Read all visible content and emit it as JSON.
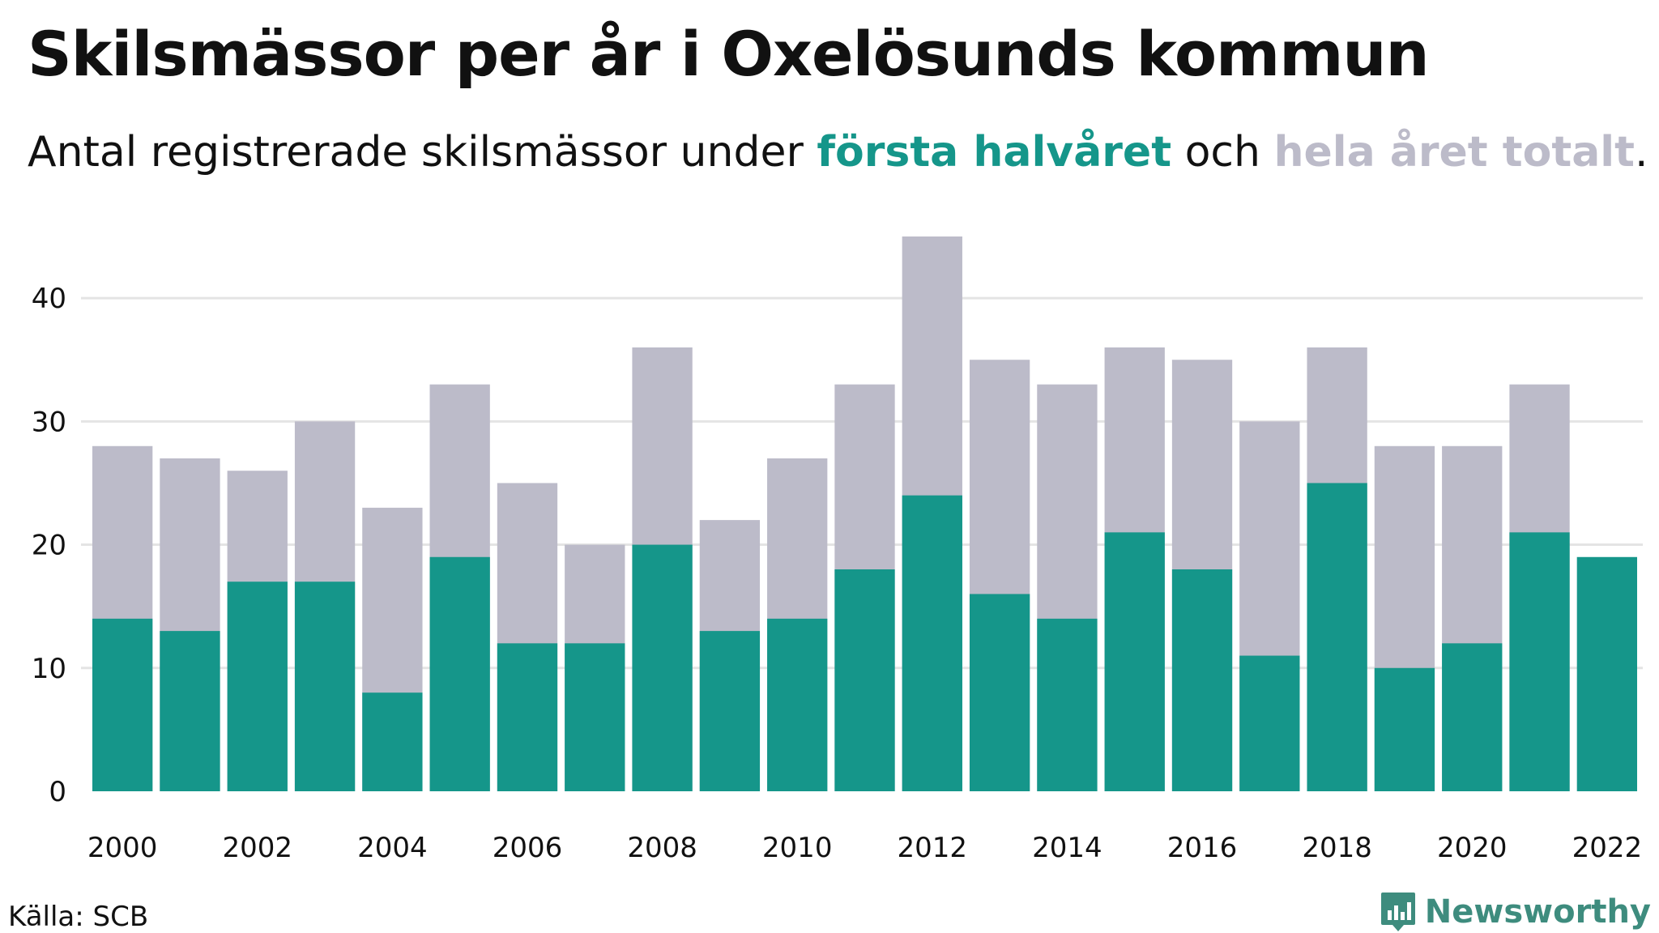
{
  "header": {
    "title": "Skilsmässor per år i Oxelösunds kommun",
    "subtitle_prefix": "Antal registrerade skilsmässor under ",
    "subtitle_highlight_1": "första halvåret",
    "subtitle_middle": " och ",
    "subtitle_highlight_2": "hela året totalt",
    "subtitle_suffix": "."
  },
  "footer": {
    "source": "Källa: SCB",
    "brand": "Newsworthy"
  },
  "colors": {
    "first_half": "#15968a",
    "full_year": "#bcbbc9",
    "gridline": "#e4e4e4",
    "brand": "#3e8c7e"
  },
  "icons": {
    "brand_logo": "newsworthy-logo-icon"
  },
  "chart_data": {
    "type": "bar",
    "stacked": "overlay",
    "categories": [
      "2000",
      "2001",
      "2002",
      "2003",
      "2004",
      "2005",
      "2006",
      "2007",
      "2008",
      "2009",
      "2010",
      "2011",
      "2012",
      "2013",
      "2014",
      "2015",
      "2016",
      "2017",
      "2018",
      "2019",
      "2020",
      "2021",
      "2022"
    ],
    "x_tick_labels": [
      "2000",
      "2002",
      "2004",
      "2006",
      "2008",
      "2010",
      "2012",
      "2014",
      "2016",
      "2018",
      "2020",
      "2022"
    ],
    "series": [
      {
        "name": "hela året totalt",
        "color": "#bcbbc9",
        "values": [
          28,
          27,
          26,
          30,
          23,
          33,
          25,
          20,
          36,
          22,
          27,
          33,
          45,
          35,
          33,
          36,
          35,
          30,
          36,
          28,
          28,
          33,
          null
        ]
      },
      {
        "name": "första halvåret",
        "color": "#15968a",
        "values": [
          14,
          13,
          17,
          17,
          8,
          19,
          12,
          12,
          20,
          13,
          14,
          18,
          24,
          16,
          14,
          21,
          18,
          11,
          25,
          10,
          12,
          21,
          19
        ]
      }
    ],
    "y_ticks": [
      0,
      10,
      20,
      30,
      40
    ],
    "ylim": [
      0,
      45
    ],
    "grid": true,
    "xlabel": "",
    "ylabel": ""
  }
}
